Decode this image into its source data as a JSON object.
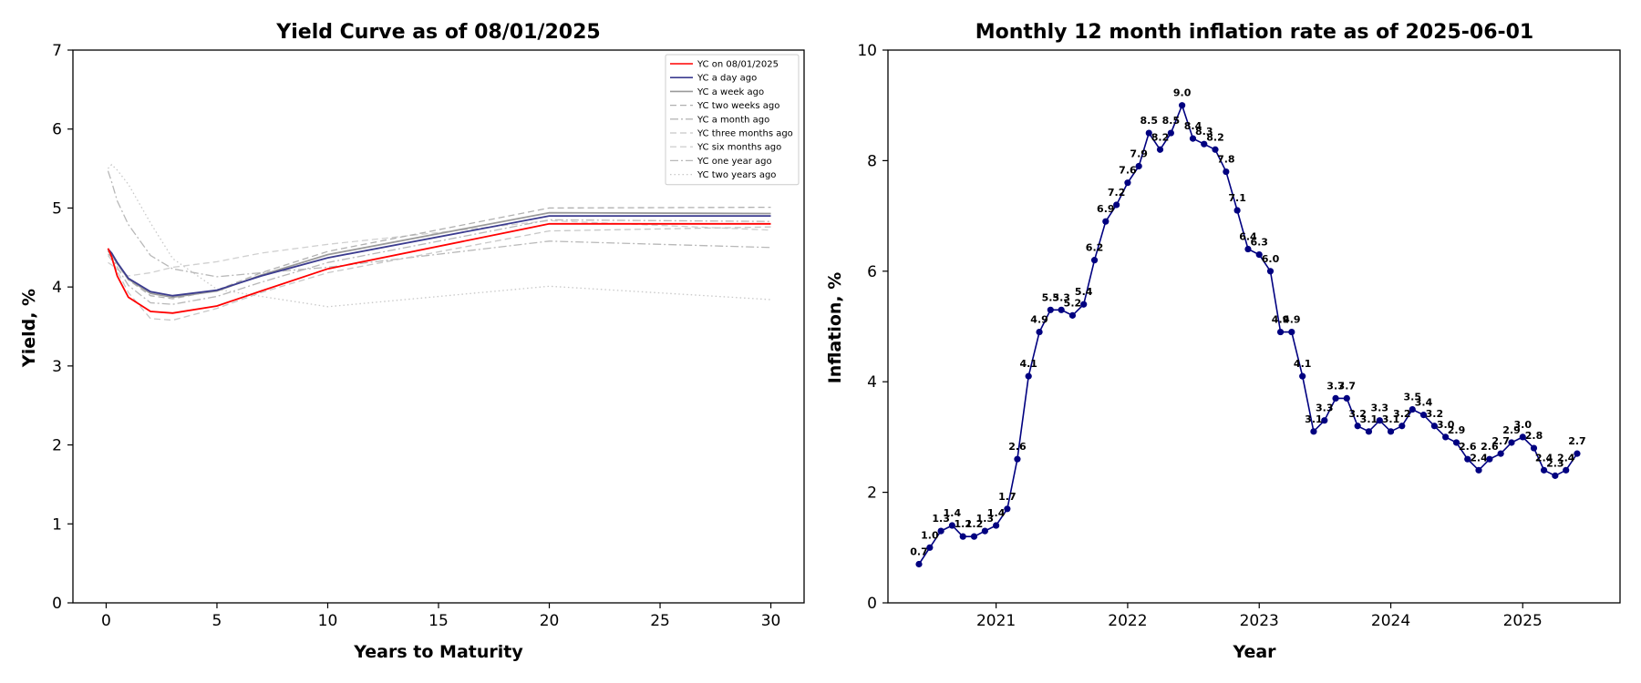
{
  "chart_data": [
    {
      "type": "line",
      "title": "Yield Curve as of 08/01/2025",
      "xlabel": "Years to Maturity",
      "ylabel": "Yield, %",
      "xlim": [
        -1.5,
        31.5
      ],
      "ylim": [
        0,
        7
      ],
      "xticks": [
        0,
        5,
        10,
        15,
        20,
        25,
        30
      ],
      "yticks": [
        0,
        1,
        2,
        3,
        4,
        5,
        6,
        7
      ],
      "grid": false,
      "legend_position": "top-right",
      "x": [
        0.083,
        0.25,
        0.5,
        1,
        2,
        3,
        5,
        7,
        10,
        20,
        30
      ],
      "series": [
        {
          "name": "YC on 08/01/2025",
          "color": "#ff0000",
          "dash": "solid",
          "values": [
            4.49,
            4.38,
            4.14,
            3.87,
            3.69,
            3.67,
            3.76,
            3.95,
            4.23,
            4.8,
            4.8
          ]
        },
        {
          "name": "YC a day ago",
          "color": "#3b3b8f",
          "dash": "solid",
          "values": [
            4.48,
            4.43,
            4.31,
            4.11,
            3.94,
            3.89,
            3.96,
            4.14,
            4.37,
            4.9,
            4.9
          ]
        },
        {
          "name": "YC a week ago",
          "color": "#9a9a9a",
          "dash": "solid",
          "values": [
            4.46,
            4.42,
            4.3,
            4.1,
            3.92,
            3.87,
            3.95,
            4.15,
            4.41,
            4.94,
            4.93
          ]
        },
        {
          "name": "YC two weeks ago",
          "color": "#b0b0b0",
          "dash": "dashed",
          "values": [
            4.45,
            4.41,
            4.29,
            4.09,
            3.89,
            3.85,
            3.96,
            4.18,
            4.45,
            5.0,
            5.01
          ]
        },
        {
          "name": "YC a month ago",
          "color": "#b8b8b8",
          "dash": "dashdot",
          "values": [
            4.42,
            4.38,
            4.25,
            4.02,
            3.8,
            3.78,
            3.88,
            4.06,
            4.31,
            4.85,
            4.83
          ]
        },
        {
          "name": "YC three months ago",
          "color": "#c8c8c8",
          "dash": "dashed",
          "values": [
            4.4,
            4.34,
            4.2,
            3.93,
            3.6,
            3.58,
            3.73,
            3.93,
            4.18,
            4.71,
            4.76
          ]
        },
        {
          "name": "YC six months ago",
          "color": "#d0d0d0",
          "dash": "dashed",
          "values": [
            4.31,
            4.28,
            4.22,
            4.14,
            4.18,
            4.25,
            4.32,
            4.43,
            4.54,
            4.84,
            4.72
          ]
        },
        {
          "name": "YC one year ago",
          "color": "#b8b8b8",
          "dash": "dashdot",
          "values": [
            5.47,
            5.33,
            5.09,
            4.79,
            4.4,
            4.23,
            4.13,
            4.18,
            4.25,
            4.58,
            4.5
          ]
        },
        {
          "name": "YC two years ago",
          "color": "#c8c8c8",
          "dash": "dotted",
          "values": [
            5.5,
            5.55,
            5.48,
            5.3,
            4.81,
            4.36,
            3.97,
            3.88,
            3.75,
            4.01,
            3.84
          ]
        }
      ]
    },
    {
      "type": "line",
      "title": "Monthly 12 month inflation rate as of 2025-06-01",
      "xlabel": "Year",
      "ylabel": "Inflation, %",
      "xlim": [
        "2020-03-07",
        "2025-09-28"
      ],
      "ylim": [
        0,
        10
      ],
      "xticks": [
        "2021",
        "2022",
        "2023",
        "2024",
        "2025"
      ],
      "yticks": [
        0,
        2,
        4,
        6,
        8,
        10
      ],
      "grid": false,
      "color": "#000080",
      "x": [
        "2020-06-01",
        "2020-07-01",
        "2020-08-01",
        "2020-09-01",
        "2020-10-01",
        "2020-11-01",
        "2020-12-01",
        "2021-01-01",
        "2021-02-01",
        "2021-03-01",
        "2021-04-01",
        "2021-05-01",
        "2021-06-01",
        "2021-07-01",
        "2021-08-01",
        "2021-09-01",
        "2021-10-01",
        "2021-11-01",
        "2021-12-01",
        "2022-01-01",
        "2022-02-01",
        "2022-03-01",
        "2022-04-01",
        "2022-05-01",
        "2022-06-01",
        "2022-07-01",
        "2022-08-01",
        "2022-09-01",
        "2022-10-01",
        "2022-11-01",
        "2022-12-01",
        "2023-01-01",
        "2023-02-01",
        "2023-03-01",
        "2023-04-01",
        "2023-05-01",
        "2023-06-01",
        "2023-07-01",
        "2023-08-01",
        "2023-09-01",
        "2023-10-01",
        "2023-11-01",
        "2023-12-01",
        "2024-01-01",
        "2024-02-01",
        "2024-03-01",
        "2024-04-01",
        "2024-05-01",
        "2024-06-01",
        "2024-07-01",
        "2024-08-01",
        "2024-09-01",
        "2024-10-01",
        "2024-11-01",
        "2024-12-01",
        "2025-01-01",
        "2025-02-01",
        "2025-03-01",
        "2025-04-01",
        "2025-05-01",
        "2025-06-01"
      ],
      "values": [
        0.7,
        1.0,
        1.3,
        1.4,
        1.2,
        1.2,
        1.3,
        1.4,
        1.7,
        2.6,
        4.1,
        4.9,
        5.3,
        5.3,
        5.2,
        5.4,
        6.2,
        6.9,
        7.2,
        7.6,
        7.9,
        8.5,
        8.2,
        8.5,
        9.0,
        8.4,
        8.3,
        8.2,
        7.8,
        7.1,
        6.4,
        6.3,
        6.0,
        4.9,
        4.9,
        4.1,
        3.1,
        3.3,
        3.7,
        3.7,
        3.2,
        3.1,
        3.3,
        3.1,
        3.2,
        3.5,
        3.4,
        3.2,
        3.0,
        2.9,
        2.6,
        2.4,
        2.6,
        2.7,
        2.9,
        3.0,
        2.8,
        2.4,
        2.3,
        2.4,
        2.7
      ],
      "data_labels": [
        "0.7",
        "1.0",
        "1.3",
        "1.4",
        "1.2",
        "1.2",
        "1.3",
        "1.4",
        "1.7",
        "2.6",
        "4.1",
        "4.9",
        "5.3",
        "5.3",
        "5.2",
        "5.4",
        "6.2",
        "6.9",
        "7.2",
        "7.6",
        "7.9",
        "8.5",
        "8.2",
        "8.5",
        "9.0",
        "8.4",
        "8.3",
        "8.2",
        "7.8",
        "7.1",
        "6.4",
        "6.3",
        "6.0",
        "4.9",
        "4.9",
        "4.1",
        "3.1",
        "3.3",
        "3.7",
        "3.7",
        "3.2",
        "3.1",
        "3.3",
        "3.1",
        "3.2",
        "3.5",
        "3.4",
        "3.2",
        "3.0",
        "2.9",
        "2.6",
        "2.4",
        "2.6",
        "2.7",
        "2.9",
        "3.0",
        "2.8",
        "2.4",
        "2.3",
        "2.4",
        "2.7"
      ]
    }
  ]
}
